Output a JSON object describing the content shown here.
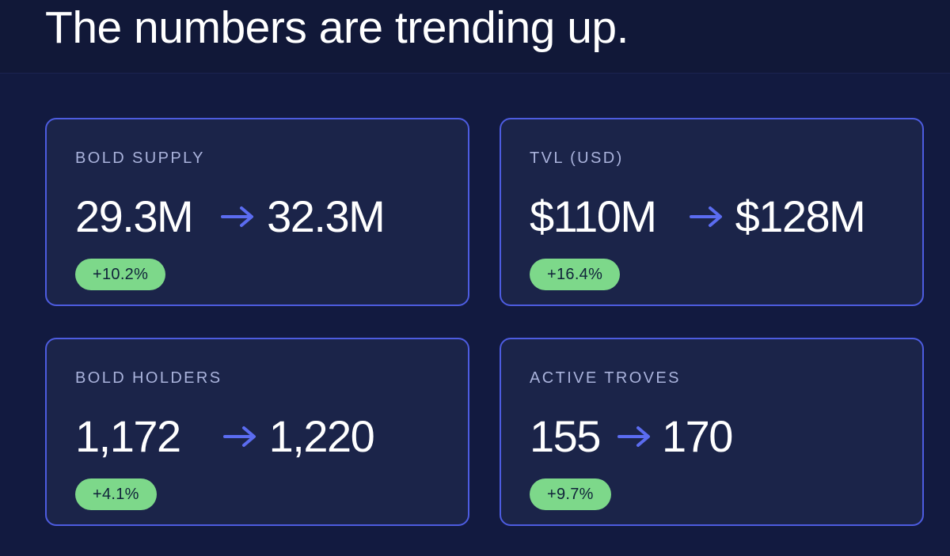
{
  "header": {
    "title": "The numbers are trending up."
  },
  "colors": {
    "background": "#121a40",
    "card_border": "#4d5ce0",
    "card_fill": "#1b2449",
    "arrow": "#5b6cf0",
    "badge": "#7dd88a"
  },
  "cards": [
    {
      "label": "BOLD SUPPLY",
      "from": "29.3M",
      "to": "32.3M",
      "change": "+10.2%",
      "icon": "arrow-right-icon"
    },
    {
      "label": "TVL (USD)",
      "from": "$110M",
      "to": "$128M",
      "change": "+16.4%",
      "icon": "arrow-right-icon"
    },
    {
      "label": "BOLD HOLDERS",
      "from": "1,172",
      "to": "1,220",
      "change": "+4.1%",
      "icon": "arrow-right-icon"
    },
    {
      "label": "ACTIVE TROVES",
      "from": "155",
      "to": "170",
      "change": "+9.7%",
      "icon": "arrow-right-icon"
    }
  ]
}
